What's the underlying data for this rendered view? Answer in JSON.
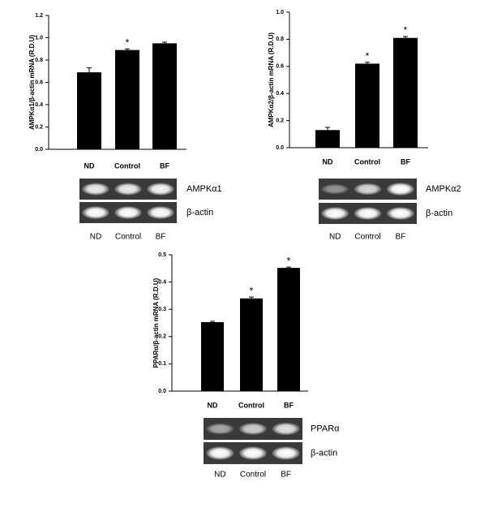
{
  "chart_data": [
    {
      "type": "bar",
      "y_label": "AMPKα1/β-actin mRNA (R.D.U)",
      "categories": [
        "ND",
        "Control",
        "BF"
      ],
      "values": [
        0.69,
        0.89,
        0.95
      ],
      "errors": [
        0.04,
        0.01,
        0.01
      ],
      "annotations": [
        null,
        "*",
        null
      ],
      "color": "#000000",
      "ylim": [
        0,
        1.2
      ],
      "yticks": [
        {
          "value": 0,
          "label": "0.0"
        },
        0.2,
        0.4,
        0.6,
        0.8,
        {
          "value": 1,
          "label": "1.0"
        },
        1.2
      ]
    },
    {
      "type": "bar",
      "y_label": "AMPKα2/β-actin mRNA (R.D.U)",
      "categories": [
        "ND",
        "Control",
        "BF"
      ],
      "values": [
        0.13,
        0.62,
        0.81
      ],
      "errors": [
        0.02,
        0.01,
        0.01
      ],
      "annotations": [
        null,
        "*",
        "*"
      ],
      "color": "#000000",
      "ylim": [
        0,
        1
      ],
      "yticks": [
        {
          "value": 0,
          "label": "0.0"
        },
        0.2,
        0.4,
        0.6,
        0.8,
        {
          "value": 1,
          "label": "1.0"
        }
      ]
    },
    {
      "type": "bar",
      "y_label": "PPARα/β-actin mRNA (R.D.U)",
      "categories": [
        "ND",
        "Control",
        "BF"
      ],
      "values": [
        0.253,
        0.34,
        0.452
      ],
      "errors": [
        0.003,
        0.005,
        0.003
      ],
      "annotations": [
        null,
        "*",
        "*"
      ],
      "color": "#000000",
      "ylim": [
        0,
        0.5
      ],
      "yticks": [
        {
          "value": 0,
          "label": "0.0"
        },
        0.1,
        0.2,
        0.3,
        0.4,
        0.5
      ]
    }
  ],
  "gels": [
    {
      "bands": [
        "AMPKα1",
        "β-actin"
      ],
      "lanes": [
        "ND",
        "Control",
        "BF"
      ]
    },
    {
      "bands": [
        "AMPKα2",
        "β-actin"
      ],
      "lanes": [
        "ND",
        "Control",
        "BF"
      ]
    },
    {
      "bands": [
        "PPARα",
        "β-actin"
      ],
      "lanes": [
        "ND",
        "Control",
        "BF"
      ]
    }
  ]
}
